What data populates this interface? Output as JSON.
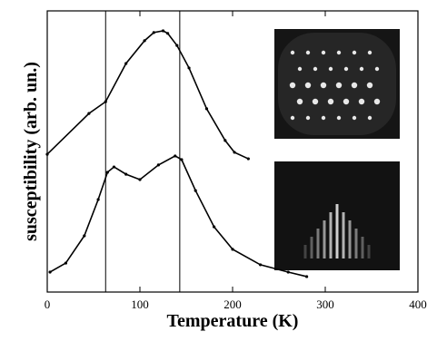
{
  "chart_data": {
    "type": "line",
    "x_label": "Temperature (K)",
    "y_label": "susceptibility (arb. un.)",
    "xlim": [
      0,
      400
    ],
    "xticks": [
      0,
      100,
      200,
      300,
      400
    ],
    "ylim": [
      0,
      10
    ],
    "vertical_lines": [
      63,
      143
    ],
    "series": [
      {
        "color": "#000000",
        "x": [
          0,
          45,
          63,
          85,
          105,
          115,
          125,
          130,
          140,
          153,
          172,
          192,
          202,
          217
        ],
        "values": [
          4.9,
          6.35,
          6.77,
          8.13,
          8.94,
          9.23,
          9.29,
          9.2,
          8.77,
          7.97,
          6.52,
          5.39,
          4.97,
          4.74
        ]
      },
      {
        "color": "#000000",
        "x": [
          3,
          20,
          40,
          55,
          65,
          72,
          85,
          100,
          120,
          138,
          145,
          160,
          180,
          200,
          230,
          260,
          280
        ],
        "values": [
          0.71,
          1.03,
          2.0,
          3.29,
          4.26,
          4.45,
          4.19,
          4.0,
          4.52,
          4.84,
          4.71,
          3.61,
          2.32,
          1.52,
          0.97,
          0.71,
          0.55
        ]
      }
    ]
  }
}
